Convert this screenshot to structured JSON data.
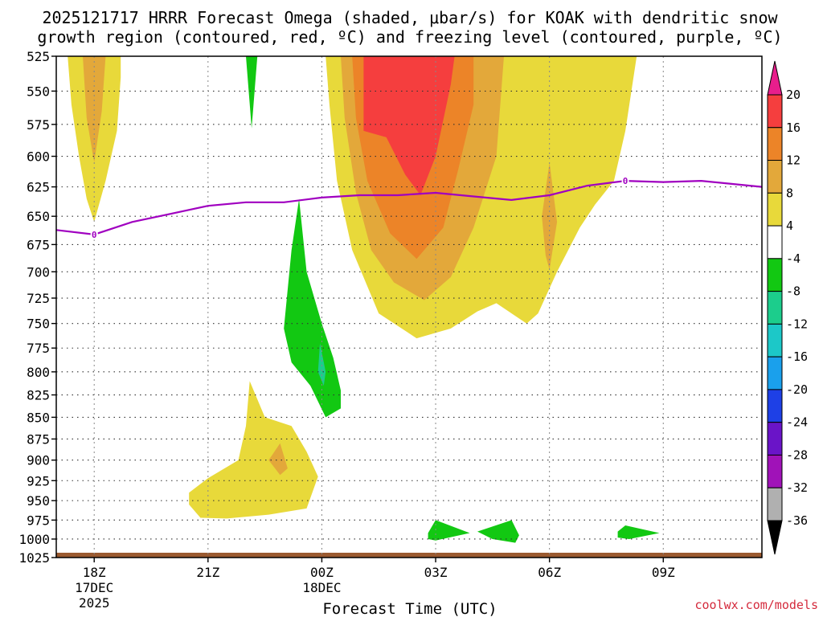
{
  "chart_data": {
    "type": "filled-contour",
    "title_line1": "2025121717 HRRR Forecast Omega (shaded, μbar/s) for KOAK with dendritic snow",
    "title_line2": "growth region (contoured, red, ºC) and freezing level (contoured, purple, ºC)",
    "xlabel": "Forecast Time (UTC)",
    "credit": "coolwx.com/models",
    "x_range_hours": [
      17,
      35.6
    ],
    "y_range_hpa": [
      525,
      1025
    ],
    "y_ticks": [
      525,
      550,
      575,
      600,
      625,
      650,
      675,
      700,
      725,
      750,
      775,
      800,
      825,
      850,
      875,
      900,
      925,
      950,
      975,
      1000,
      1025
    ],
    "x_ticks": [
      {
        "hour": 18,
        "lines": [
          "18Z",
          "17DEC",
          "2025"
        ]
      },
      {
        "hour": 21,
        "lines": [
          "21Z"
        ]
      },
      {
        "hour": 24,
        "lines": [
          "00Z",
          "18DEC"
        ]
      },
      {
        "hour": 27,
        "lines": [
          "03Z"
        ]
      },
      {
        "hour": 30,
        "lines": [
          "06Z"
        ]
      },
      {
        "hour": 33,
        "lines": [
          "09Z"
        ]
      }
    ],
    "colorbar": {
      "bins": [
        {
          "low": 20,
          "high": null,
          "color": "#e81e8c"
        },
        {
          "low": 16,
          "high": 20,
          "color": "#f53e3e"
        },
        {
          "low": 12,
          "high": 16,
          "color": "#ec8428"
        },
        {
          "low": 8,
          "high": 12,
          "color": "#e3a83a"
        },
        {
          "low": 4,
          "high": 8,
          "color": "#e8d93a"
        },
        {
          "low": -4,
          "high": 4,
          "color": "#ffffff"
        },
        {
          "low": -8,
          "high": -4,
          "color": "#12c812"
        },
        {
          "low": -12,
          "high": -8,
          "color": "#1ccd8c"
        },
        {
          "low": -16,
          "high": -12,
          "color": "#1cc8c8"
        },
        {
          "low": -20,
          "high": -16,
          "color": "#1aa0ec"
        },
        {
          "low": -24,
          "high": -20,
          "color": "#1e40e6"
        },
        {
          "low": -28,
          "high": -24,
          "color": "#6a14c8"
        },
        {
          "low": -32,
          "high": -28,
          "color": "#a012b8"
        },
        {
          "low": -36,
          "high": -32,
          "color": "#b0b0b0"
        },
        {
          "low": null,
          "high": -36,
          "color": "#000000"
        }
      ],
      "labels": [
        "20",
        "16",
        "12",
        "8",
        "4",
        "-4",
        "-8",
        "-12",
        "-16",
        "-20",
        "-24",
        "-28",
        "-32",
        "-36"
      ]
    },
    "freezing_level": {
      "label": "0",
      "color": "#a000c0",
      "points": [
        [
          17,
          662
        ],
        [
          18,
          666
        ],
        [
          19,
          655
        ],
        [
          20,
          648
        ],
        [
          21,
          641
        ],
        [
          22,
          638
        ],
        [
          23,
          638
        ],
        [
          24,
          634
        ],
        [
          25,
          632
        ],
        [
          26,
          632
        ],
        [
          27,
          630
        ],
        [
          28,
          633
        ],
        [
          29,
          636
        ],
        [
          30,
          632
        ],
        [
          31,
          624
        ],
        [
          32,
          620
        ],
        [
          33,
          621
        ],
        [
          34,
          620
        ],
        [
          35.6,
          625
        ]
      ]
    },
    "ground_color": "#9a5a30",
    "omega_regions": [
      {
        "value_range": [
          4,
          8
        ],
        "color": "#e8d93a",
        "polygon": [
          [
            17.3,
            525
          ],
          [
            17.4,
            560
          ],
          [
            17.6,
            600
          ],
          [
            17.8,
            635
          ],
          [
            18.0,
            655
          ],
          [
            18.3,
            620
          ],
          [
            18.6,
            580
          ],
          [
            18.7,
            540
          ],
          [
            18.7,
            525
          ]
        ]
      },
      {
        "value_range": [
          8,
          12
        ],
        "color": "#e3a83a",
        "polygon": [
          [
            17.7,
            525
          ],
          [
            17.8,
            570
          ],
          [
            18.0,
            605
          ],
          [
            18.2,
            565
          ],
          [
            18.3,
            525
          ]
        ]
      },
      {
        "value_range": [
          -8,
          -4
        ],
        "color": "#12c812",
        "polygon": [
          [
            22.0,
            525
          ],
          [
            22.15,
            578
          ],
          [
            22.3,
            525
          ]
        ]
      },
      {
        "value_range": [
          4,
          8
        ],
        "color": "#e8d93a",
        "polygon": [
          [
            24.1,
            525
          ],
          [
            24.2,
            560
          ],
          [
            24.4,
            620
          ],
          [
            24.8,
            680
          ],
          [
            25.5,
            740
          ],
          [
            26.5,
            765
          ],
          [
            27.4,
            755
          ],
          [
            28.1,
            738
          ],
          [
            28.6,
            730
          ],
          [
            29.0,
            740
          ],
          [
            29.4,
            750
          ],
          [
            29.7,
            740
          ],
          [
            30.2,
            700
          ],
          [
            30.8,
            660
          ],
          [
            31.2,
            640
          ],
          [
            31.7,
            620
          ],
          [
            32.0,
            580
          ],
          [
            32.3,
            525
          ]
        ]
      },
      {
        "value_range": [
          8,
          12
        ],
        "color": "#e3a83a",
        "polygon": [
          [
            24.5,
            525
          ],
          [
            24.6,
            570
          ],
          [
            24.9,
            630
          ],
          [
            25.3,
            680
          ],
          [
            25.9,
            710
          ],
          [
            26.7,
            727
          ],
          [
            27.4,
            705
          ],
          [
            28.0,
            660
          ],
          [
            28.6,
            600
          ],
          [
            28.8,
            525
          ]
        ]
      },
      {
        "value_range": [
          12,
          16
        ],
        "color": "#ec8428",
        "polygon": [
          [
            24.8,
            525
          ],
          [
            24.9,
            570
          ],
          [
            25.2,
            620
          ],
          [
            25.8,
            665
          ],
          [
            26.5,
            688
          ],
          [
            27.2,
            660
          ],
          [
            27.6,
            610
          ],
          [
            28.0,
            560
          ],
          [
            28.0,
            525
          ]
        ]
      },
      {
        "value_range": [
          16,
          20
        ],
        "color": "#f53e3e",
        "polygon": [
          [
            25.1,
            525
          ],
          [
            25.1,
            580
          ],
          [
            25.7,
            585
          ],
          [
            26.2,
            615
          ],
          [
            26.6,
            632
          ],
          [
            27.0,
            600
          ],
          [
            27.4,
            545
          ],
          [
            27.5,
            525
          ]
        ]
      },
      {
        "value_range": [
          8,
          12
        ],
        "color": "#e3a83a",
        "polygon": [
          [
            29.8,
            650
          ],
          [
            30.0,
            605
          ],
          [
            30.2,
            655
          ],
          [
            30.0,
            698
          ],
          [
            29.9,
            685
          ]
        ]
      },
      {
        "value_range": [
          -8,
          -4
        ],
        "color": "#12c812",
        "polygon": [
          [
            23.0,
            755
          ],
          [
            23.2,
            680
          ],
          [
            23.4,
            635
          ],
          [
            23.6,
            700
          ],
          [
            24.0,
            750
          ],
          [
            24.3,
            785
          ],
          [
            24.5,
            820
          ],
          [
            24.5,
            840
          ],
          [
            24.1,
            850
          ],
          [
            23.7,
            815
          ],
          [
            23.2,
            790
          ]
        ]
      },
      {
        "value_range": [
          -12,
          -8
        ],
        "color": "#1ccd8c",
        "polygon": [
          [
            23.9,
            800
          ],
          [
            23.95,
            770
          ],
          [
            24.1,
            800
          ],
          [
            24.05,
            815
          ]
        ]
      },
      {
        "value_range": [
          4,
          8
        ],
        "color": "#e8d93a",
        "polygon": [
          [
            20.5,
            940
          ],
          [
            21.0,
            922
          ],
          [
            21.8,
            900
          ],
          [
            22.0,
            860
          ],
          [
            22.1,
            810
          ],
          [
            22.5,
            850
          ],
          [
            23.2,
            860
          ],
          [
            23.6,
            890
          ],
          [
            23.9,
            920
          ],
          [
            23.6,
            960
          ],
          [
            22.6,
            968
          ],
          [
            21.5,
            973
          ],
          [
            20.8,
            972
          ],
          [
            20.5,
            955
          ]
        ]
      },
      {
        "value_range": [
          8,
          12
        ],
        "color": "#e3a83a",
        "polygon": [
          [
            22.6,
            900
          ],
          [
            22.9,
            880
          ],
          [
            23.1,
            910
          ],
          [
            22.9,
            918
          ]
        ]
      },
      {
        "value_range": [
          -8,
          -4
        ],
        "color": "#12c812",
        "polygon": [
          [
            26.8,
            992
          ],
          [
            27.0,
            975
          ],
          [
            27.9,
            992
          ],
          [
            27.0,
            1002
          ],
          [
            26.8,
            1000
          ]
        ]
      },
      {
        "value_range": [
          -8,
          -4
        ],
        "color": "#12c812",
        "polygon": [
          [
            28.1,
            990
          ],
          [
            29.0,
            975
          ],
          [
            29.2,
            995
          ],
          [
            29.1,
            1005
          ],
          [
            28.5,
            1000
          ]
        ]
      },
      {
        "value_range": [
          -8,
          -4
        ],
        "color": "#12c812",
        "polygon": [
          [
            31.8,
            990
          ],
          [
            32.0,
            982
          ],
          [
            32.9,
            992
          ],
          [
            32.1,
            1000
          ],
          [
            31.8,
            998
          ]
        ]
      }
    ]
  }
}
